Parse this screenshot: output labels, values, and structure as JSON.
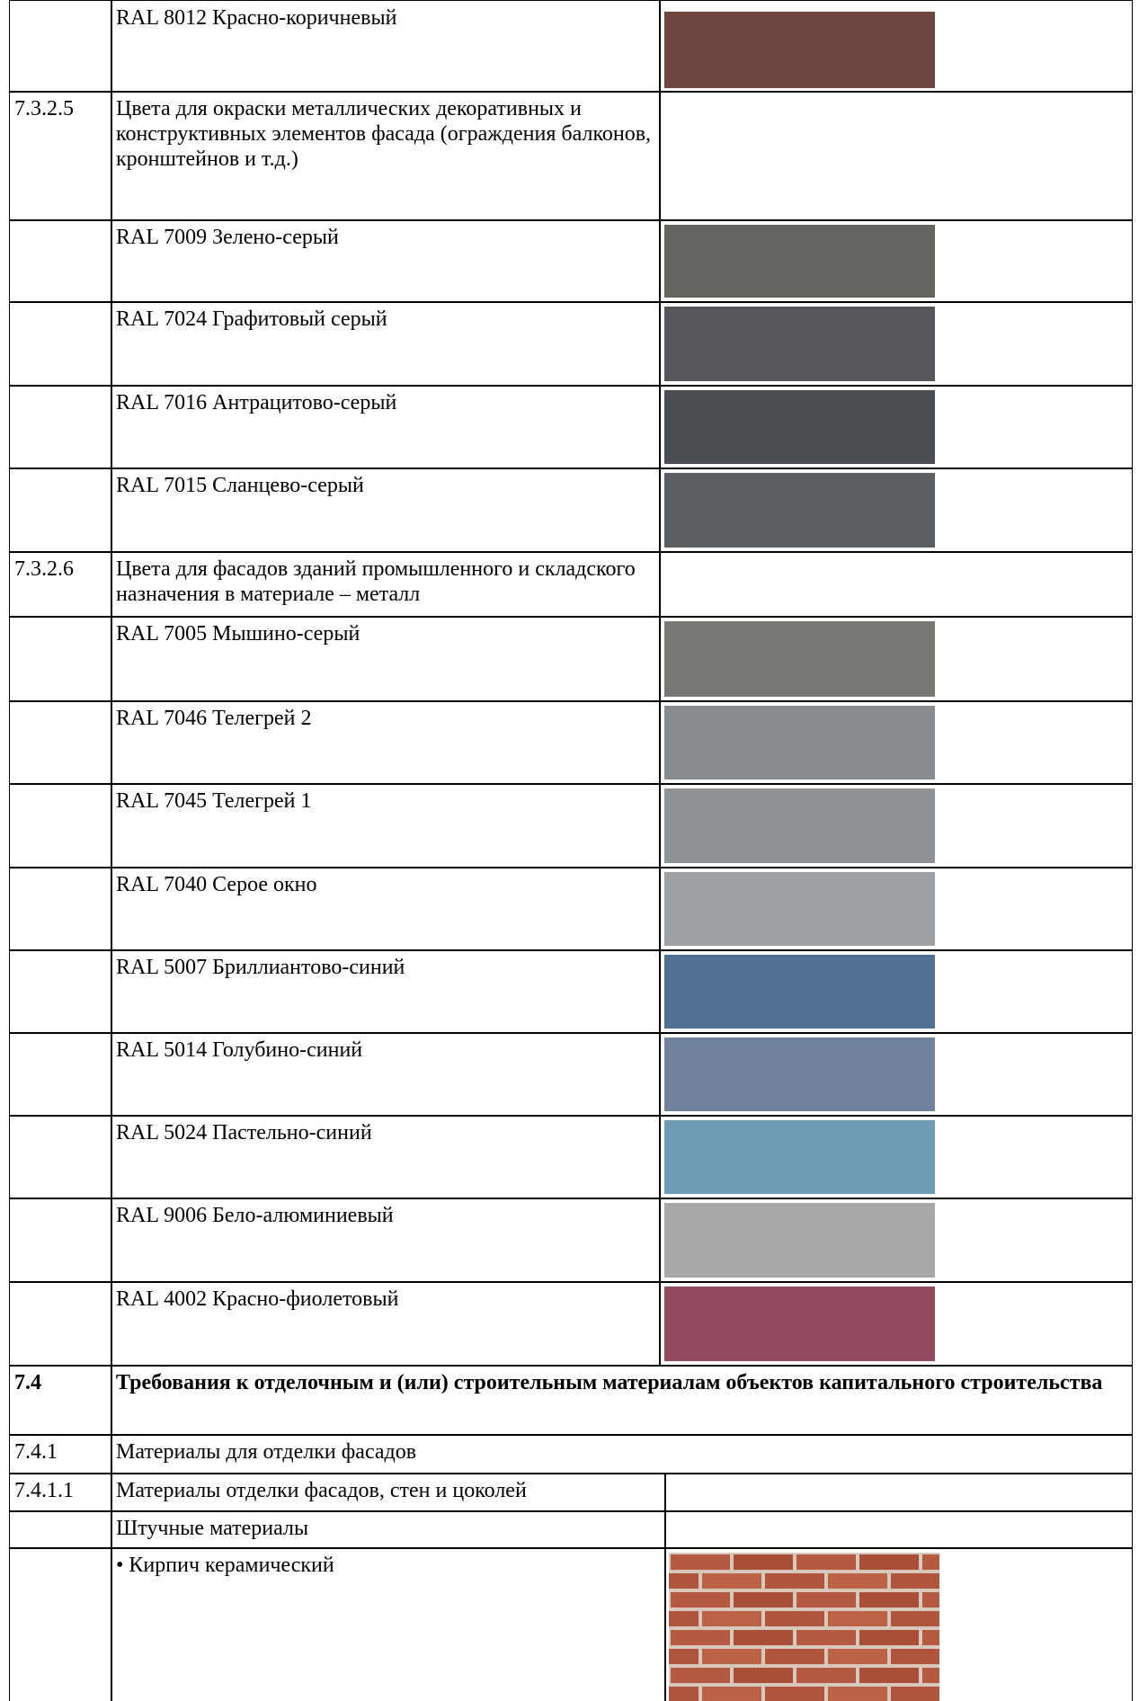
{
  "rows": [
    {
      "text": "RAL 8012 Красно-коричневый",
      "color": "#6f4640"
    },
    {
      "number": "7.3.2.5",
      "text": "Цвета для окраски металлических декоративных и конструктивных элементов фасада (ограждения балконов, кронштейнов и т.д.)"
    },
    {
      "text": "RAL 7009 Зелено-серый",
      "color": "#63665e"
    },
    {
      "text": "RAL 7024 Графитовый серый",
      "color": "#55575b"
    },
    {
      "text": "RAL 7016 Антрацитово-серый",
      "color": "#4a4d51"
    },
    {
      "text": "RAL 7015 Сланцево-серый",
      "color": "#5b5e62"
    },
    {
      "number": "7.3.2.6",
      "text": "Цвета для фасадов зданий промышленного и складского назначения в материале – металл"
    },
    {
      "text": "RAL 7005 Мышино-серый",
      "color": "#767873"
    },
    {
      "text": "RAL 7046 Телегрей 2",
      "color": "#868b8f"
    },
    {
      "text": "RAL 7045 Телегрей 1",
      "color": "#8f9396"
    },
    {
      "text": "RAL 7040 Серое окно",
      "color": "#9da1a4"
    },
    {
      "text": "RAL 5007 Бриллиантово-синий",
      "color": "#4f7093"
    },
    {
      "text": "RAL 5014 Голубино-синий",
      "color": "#6e829c"
    },
    {
      "text": "RAL 5024 Пастельно-синий",
      "color": "#6e9ab4"
    },
    {
      "text": "RAL 9006 Бело-алюминиевый",
      "color": "#a8a8a8"
    },
    {
      "text": "RAL 4002 Красно-фиолетовый",
      "color": "#904c5d"
    },
    {
      "number": "7.4",
      "text": "Требования к отделочным и (или) строительным материалам объектов капитального строительства"
    },
    {
      "number": "7.4.1",
      "text": "Материалы для отделки фасадов"
    },
    {
      "number": "7.4.1.1",
      "text": "Материалы отделки фасадов, стен и цоколей"
    },
    {
      "text": "Штучные материалы"
    },
    {
      "text": "Кирпич керамический"
    }
  ]
}
